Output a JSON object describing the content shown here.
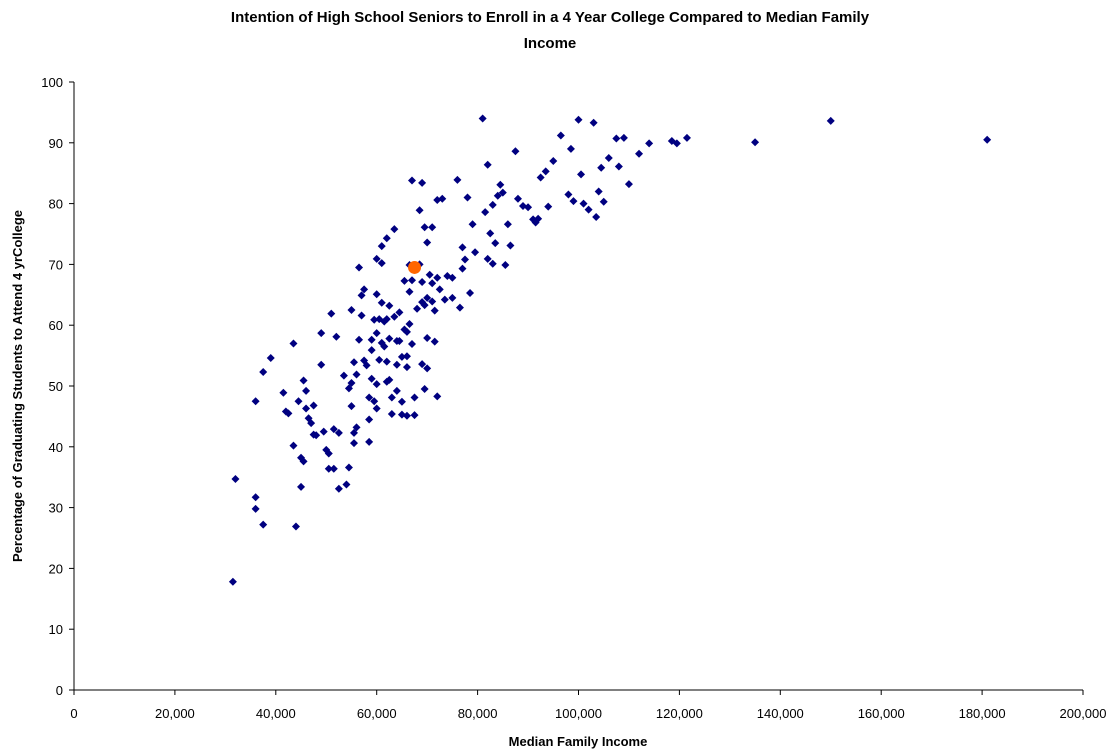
{
  "chart_data": {
    "type": "scatter",
    "title_line1": "Intention of High School Seniors to Enroll in a 4 Year College Compared to Median Family",
    "title_line2": "Income",
    "xlabel": "Median Family Income",
    "ylabel": "Percentage of Graduating Students to Attend 4 yrCollege",
    "xlim": [
      0,
      200000
    ],
    "ylim": [
      0,
      100
    ],
    "x_ticks": [
      0,
      20000,
      40000,
      60000,
      80000,
      100000,
      120000,
      140000,
      160000,
      180000,
      200000
    ],
    "x_tick_labels": [
      "0",
      "20,000",
      "40,000",
      "60,000",
      "80,000",
      "100,000",
      "120,000",
      "140,000",
      "160,000",
      "180,000",
      "200,000"
    ],
    "y_ticks": [
      0,
      10,
      20,
      30,
      40,
      50,
      60,
      70,
      80,
      90,
      100
    ],
    "y_tick_labels": [
      "0",
      "10",
      "20",
      "30",
      "40",
      "50",
      "60",
      "70",
      "80",
      "90",
      "100"
    ],
    "grid": false,
    "legend": "none",
    "series_color": "#000080",
    "highlight_color": "#FF6600",
    "highlight_point": [
      67500,
      69.5
    ],
    "points": [
      [
        31500,
        17.8
      ],
      [
        32000,
        34.7
      ],
      [
        36000,
        31.7
      ],
      [
        36000,
        29.8
      ],
      [
        36000,
        47.5
      ],
      [
        37500,
        52.3
      ],
      [
        37500,
        27.2
      ],
      [
        39000,
        54.6
      ],
      [
        41500,
        48.9
      ],
      [
        42000,
        45.8
      ],
      [
        42500,
        45.5
      ],
      [
        43500,
        57.0
      ],
      [
        43500,
        40.2
      ],
      [
        44500,
        47.5
      ],
      [
        44000,
        26.9
      ],
      [
        45000,
        33.4
      ],
      [
        45000,
        38.2
      ],
      [
        45500,
        37.6
      ],
      [
        45500,
        50.9
      ],
      [
        46000,
        46.3
      ],
      [
        46000,
        49.2
      ],
      [
        46500,
        44.7
      ],
      [
        47000,
        43.9
      ],
      [
        47500,
        42.0
      ],
      [
        47500,
        46.8
      ],
      [
        48000,
        41.9
      ],
      [
        49000,
        58.7
      ],
      [
        49000,
        53.5
      ],
      [
        49500,
        42.5
      ],
      [
        50000,
        39.5
      ],
      [
        50500,
        36.4
      ],
      [
        50500,
        38.9
      ],
      [
        51000,
        61.9
      ],
      [
        51500,
        42.9
      ],
      [
        51500,
        36.4
      ],
      [
        52000,
        58.1
      ],
      [
        52500,
        42.3
      ],
      [
        52500,
        33.1
      ],
      [
        53500,
        51.7
      ],
      [
        54000,
        33.8
      ],
      [
        54500,
        36.6
      ],
      [
        54500,
        49.6
      ],
      [
        55000,
        62.5
      ],
      [
        55000,
        50.5
      ],
      [
        55000,
        46.7
      ],
      [
        55500,
        40.6
      ],
      [
        55500,
        42.3
      ],
      [
        56000,
        43.2
      ],
      [
        55500,
        53.9
      ],
      [
        56000,
        51.9
      ],
      [
        56500,
        57.6
      ],
      [
        56500,
        69.5
      ],
      [
        57000,
        64.9
      ],
      [
        57000,
        61.6
      ],
      [
        57500,
        54.2
      ],
      [
        57500,
        65.9
      ],
      [
        58000,
        53.4
      ],
      [
        58500,
        48.1
      ],
      [
        58500,
        44.5
      ],
      [
        58500,
        40.8
      ],
      [
        59000,
        57.6
      ],
      [
        59000,
        55.9
      ],
      [
        59000,
        51.2
      ],
      [
        59500,
        47.5
      ],
      [
        59500,
        60.9
      ],
      [
        60000,
        70.9
      ],
      [
        60000,
        65.1
      ],
      [
        60000,
        58.7
      ],
      [
        60000,
        50.3
      ],
      [
        60000,
        46.3
      ],
      [
        60500,
        61.0
      ],
      [
        60500,
        54.3
      ],
      [
        61000,
        73.0
      ],
      [
        61000,
        70.2
      ],
      [
        61000,
        63.7
      ],
      [
        61000,
        57.1
      ],
      [
        61500,
        60.6
      ],
      [
        61500,
        56.5
      ],
      [
        62000,
        74.3
      ],
      [
        62000,
        61.0
      ],
      [
        62000,
        54.0
      ],
      [
        62000,
        50.7
      ],
      [
        62500,
        63.2
      ],
      [
        62500,
        57.8
      ],
      [
        62500,
        51.0
      ],
      [
        63000,
        48.1
      ],
      [
        63000,
        45.4
      ],
      [
        63500,
        75.8
      ],
      [
        63500,
        61.4
      ],
      [
        64000,
        57.4
      ],
      [
        64000,
        53.5
      ],
      [
        64000,
        49.2
      ],
      [
        64500,
        62.1
      ],
      [
        64500,
        57.4
      ],
      [
        65000,
        54.8
      ],
      [
        65000,
        47.4
      ],
      [
        65000,
        45.3
      ],
      [
        65500,
        67.3
      ],
      [
        65500,
        59.3
      ],
      [
        66000,
        58.9
      ],
      [
        66000,
        54.9
      ],
      [
        66000,
        53.1
      ],
      [
        66000,
        45.1
      ],
      [
        66500,
        69.9
      ],
      [
        66500,
        65.5
      ],
      [
        66500,
        60.2
      ],
      [
        67000,
        83.8
      ],
      [
        67000,
        67.4
      ],
      [
        67000,
        56.9
      ],
      [
        67500,
        48.1
      ],
      [
        67500,
        45.2
      ],
      [
        68000,
        62.7
      ],
      [
        68500,
        78.9
      ],
      [
        68500,
        70.0
      ],
      [
        69000,
        83.4
      ],
      [
        69000,
        67.1
      ],
      [
        69000,
        63.8
      ],
      [
        69000,
        53.6
      ],
      [
        69500,
        76.1
      ],
      [
        69500,
        63.3
      ],
      [
        69500,
        49.5
      ],
      [
        70000,
        73.6
      ],
      [
        70000,
        64.5
      ],
      [
        70000,
        57.9
      ],
      [
        70000,
        52.9
      ],
      [
        70500,
        68.3
      ],
      [
        71000,
        76.1
      ],
      [
        71000,
        66.9
      ],
      [
        71000,
        63.9
      ],
      [
        71500,
        62.4
      ],
      [
        71500,
        57.3
      ],
      [
        72000,
        80.6
      ],
      [
        72000,
        67.8
      ],
      [
        72000,
        48.3
      ],
      [
        72500,
        65.9
      ],
      [
        73000,
        80.8
      ],
      [
        73500,
        64.2
      ],
      [
        74000,
        68.1
      ],
      [
        75000,
        67.8
      ],
      [
        75000,
        64.5
      ],
      [
        76000,
        83.9
      ],
      [
        76500,
        62.9
      ],
      [
        77000,
        72.8
      ],
      [
        77000,
        69.3
      ],
      [
        77500,
        70.8
      ],
      [
        78000,
        81.0
      ],
      [
        78500,
        65.3
      ],
      [
        79000,
        76.6
      ],
      [
        79500,
        72.0
      ],
      [
        81000,
        94.0
      ],
      [
        81500,
        78.6
      ],
      [
        82000,
        86.4
      ],
      [
        82000,
        70.9
      ],
      [
        82500,
        75.1
      ],
      [
        83000,
        79.8
      ],
      [
        83000,
        70.1
      ],
      [
        83500,
        73.5
      ],
      [
        84000,
        81.3
      ],
      [
        84500,
        83.1
      ],
      [
        85000,
        81.8
      ],
      [
        85500,
        69.9
      ],
      [
        86000,
        76.6
      ],
      [
        86500,
        73.1
      ],
      [
        87500,
        88.6
      ],
      [
        88000,
        80.8
      ],
      [
        89000,
        79.6
      ],
      [
        90000,
        79.4
      ],
      [
        91000,
        77.4
      ],
      [
        91500,
        76.9
      ],
      [
        92000,
        77.5
      ],
      [
        92500,
        84.3
      ],
      [
        93500,
        85.3
      ],
      [
        94000,
        79.5
      ],
      [
        95000,
        87.0
      ],
      [
        96500,
        91.2
      ],
      [
        98000,
        81.5
      ],
      [
        98500,
        89.0
      ],
      [
        99000,
        80.4
      ],
      [
        100000,
        93.8
      ],
      [
        100500,
        84.8
      ],
      [
        101000,
        80.0
      ],
      [
        102000,
        79.0
      ],
      [
        103000,
        93.3
      ],
      [
        103500,
        77.8
      ],
      [
        104000,
        82.0
      ],
      [
        104500,
        85.9
      ],
      [
        105000,
        80.3
      ],
      [
        106000,
        87.5
      ],
      [
        107500,
        90.7
      ],
      [
        108000,
        86.1
      ],
      [
        109000,
        90.8
      ],
      [
        110000,
        83.2
      ],
      [
        112000,
        88.2
      ],
      [
        114000,
        89.9
      ],
      [
        118500,
        90.3
      ],
      [
        119500,
        89.9
      ],
      [
        121500,
        90.8
      ],
      [
        135000,
        90.1
      ],
      [
        150000,
        93.6
      ],
      [
        181000,
        90.5
      ]
    ]
  }
}
